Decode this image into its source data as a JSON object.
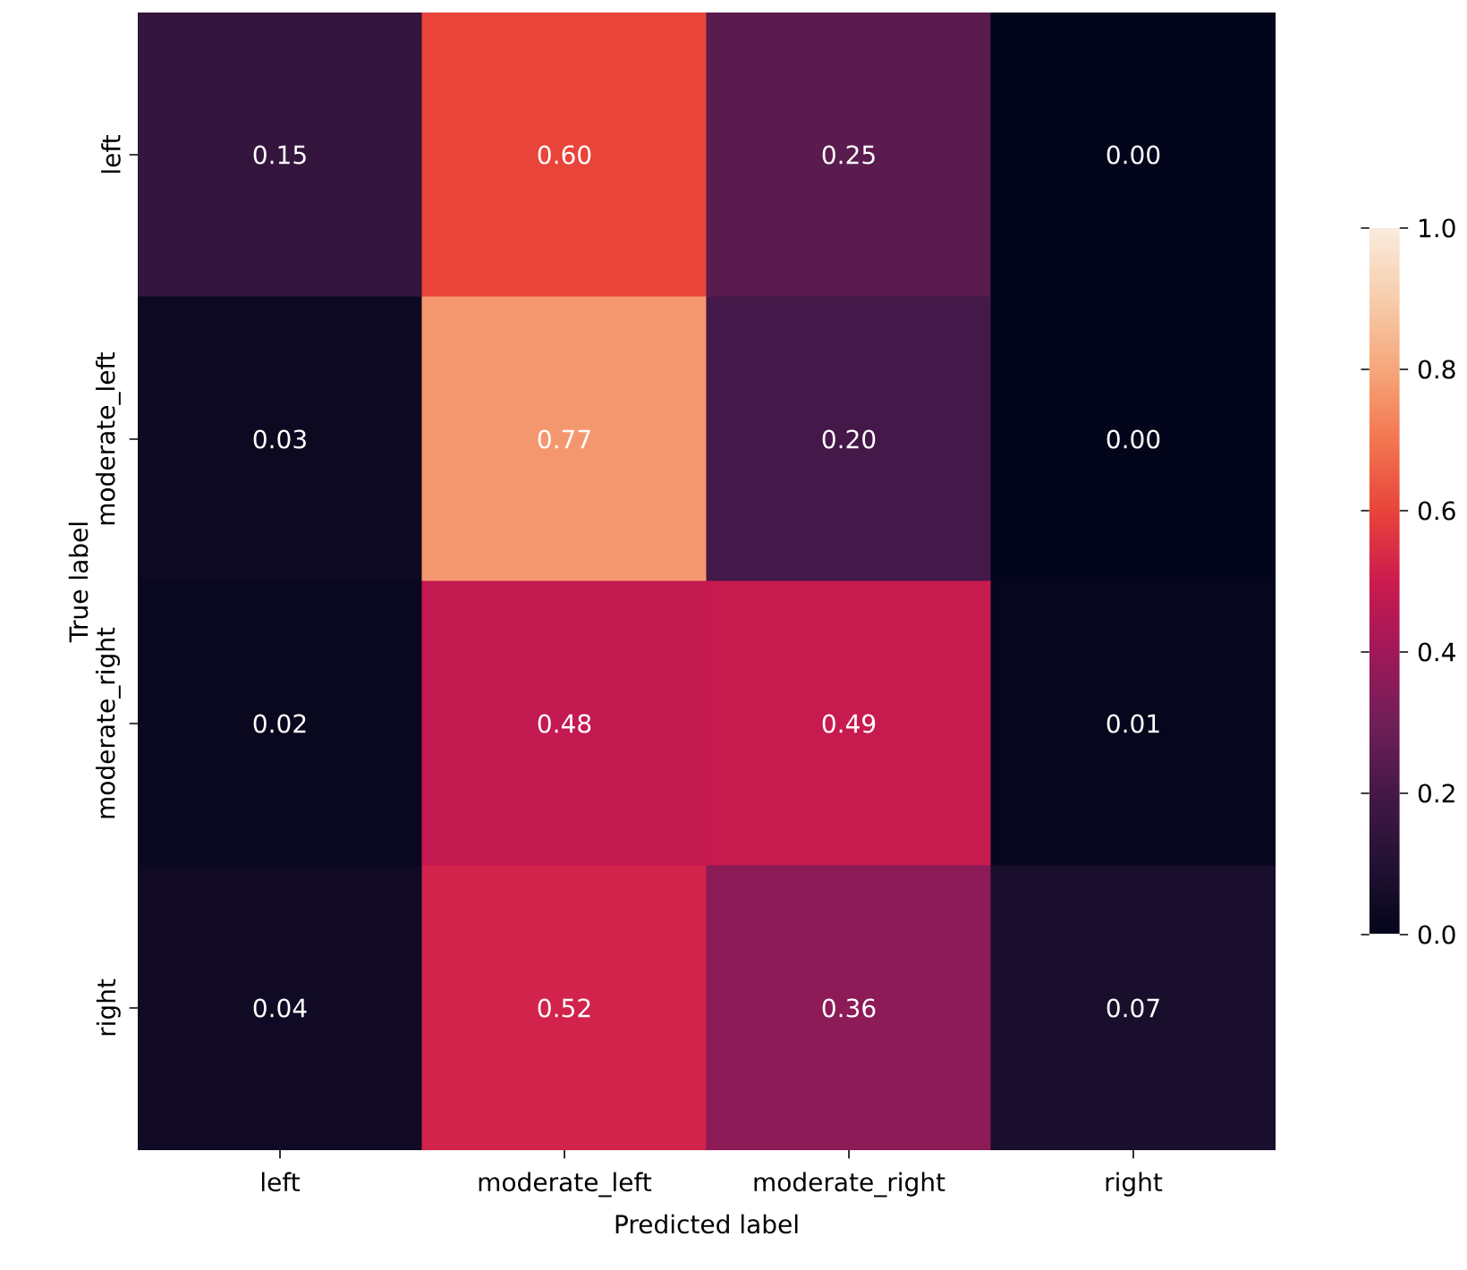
{
  "chart_data": {
    "type": "heatmap",
    "xlabel": "Predicted label",
    "ylabel": "True label",
    "categories": [
      "left",
      "moderate_left",
      "moderate_right",
      "right"
    ],
    "y_categories": [
      "left",
      "moderate_left",
      "moderate_right",
      "right"
    ],
    "cells": [
      [
        0.15,
        0.6,
        0.25,
        0.0
      ],
      [
        0.03,
        0.77,
        0.2,
        0.0
      ],
      [
        0.02,
        0.48,
        0.49,
        0.01
      ],
      [
        0.04,
        0.52,
        0.36,
        0.07
      ]
    ],
    "cell_labels": [
      [
        "0.15",
        "0.60",
        "0.25",
        "0.00"
      ],
      [
        "0.03",
        "0.77",
        "0.20",
        "0.00"
      ],
      [
        "0.02",
        "0.48",
        "0.49",
        "0.01"
      ],
      [
        "0.04",
        "0.52",
        "0.36",
        "0.07"
      ]
    ],
    "clim": [
      0,
      1
    ],
    "cticks": [
      {
        "value": 0,
        "label": "0.0"
      },
      {
        "value": 0.2,
        "label": "0.2"
      },
      {
        "value": 0.4,
        "label": "0.4"
      },
      {
        "value": 0.6,
        "label": "0.6"
      },
      {
        "value": 0.8,
        "label": "0.8"
      },
      {
        "value": 1,
        "label": "1.0"
      }
    ]
  }
}
